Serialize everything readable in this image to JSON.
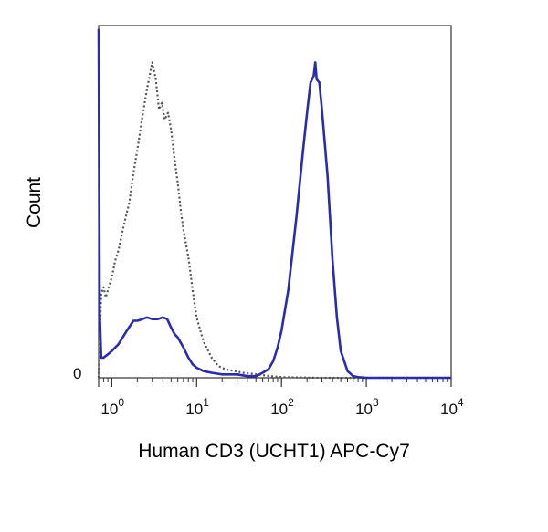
{
  "chart_data": {
    "type": "line",
    "xlabel": "Human CD3 (UCHT1) APC-Cy7",
    "ylabel": "Count",
    "x_scale": "log",
    "xlim": [
      0.7,
      10000
    ],
    "ylim": [
      0,
      105
    ],
    "x_ticks": [
      {
        "base": "10",
        "exp": "0",
        "value": 1
      },
      {
        "base": "10",
        "exp": "1",
        "value": 10
      },
      {
        "base": "10",
        "exp": "2",
        "value": 100
      },
      {
        "base": "10",
        "exp": "3",
        "value": 1000
      },
      {
        "base": "10",
        "exp": "4",
        "value": 10000
      }
    ],
    "y_tick_label": "0",
    "series": [
      {
        "style": "dotted",
        "color": "#555555",
        "x": [
          0.7,
          0.72,
          0.75,
          0.8,
          0.85,
          0.9,
          1.0,
          1.1,
          1.2,
          1.4,
          1.6,
          1.8,
          2.0,
          2.3,
          2.6,
          3.0,
          3.3,
          3.6,
          3.9,
          4.2,
          4.6,
          5.0,
          5.5,
          6.0,
          6.5,
          7.0,
          8.0,
          9.0,
          10,
          12,
          15,
          18,
          22,
          28,
          35,
          45,
          60,
          80,
          100,
          150,
          300,
          1000,
          10000
        ],
        "y": [
          0,
          12,
          25,
          27,
          24,
          26,
          30,
          35,
          38,
          46,
          52,
          61,
          68,
          78,
          86,
          94,
          89,
          80,
          82,
          77,
          79,
          74,
          65,
          58,
          50,
          44,
          36,
          26,
          18,
          11,
          6,
          3.5,
          2.5,
          2,
          1.5,
          1.2,
          0.8,
          0.4,
          0.2,
          0.1,
          0,
          0,
          0
        ]
      },
      {
        "style": "solid",
        "color": "#2b2bb0",
        "x": [
          0.7,
          0.71,
          0.72,
          0.75,
          0.8,
          0.9,
          1.0,
          1.2,
          1.5,
          1.8,
          2.0,
          2.3,
          2.6,
          3.0,
          3.5,
          4.0,
          4.5,
          5.0,
          5.5,
          6.0,
          7.0,
          8.0,
          9.0,
          10,
          12,
          15,
          20,
          25,
          30,
          40,
          50,
          60,
          70,
          80,
          90,
          100,
          120,
          150,
          180,
          200,
          220,
          240,
          250,
          260,
          280,
          300,
          350,
          400,
          450,
          500,
          600,
          700,
          800,
          1000,
          3000,
          10000
        ],
        "y": [
          104,
          60,
          20,
          6,
          6,
          7,
          8,
          10,
          14,
          17,
          17,
          17.5,
          18,
          17.5,
          17.5,
          18,
          17.5,
          15,
          13,
          12,
          9,
          6,
          4,
          3,
          2,
          1.5,
          1,
          1,
          1,
          0.5,
          0.5,
          1.5,
          2.5,
          5,
          9,
          14,
          26,
          48,
          68,
          79,
          88,
          90,
          94,
          89,
          88,
          80,
          60,
          35,
          18,
          8,
          2,
          0.5,
          0.2,
          0,
          0,
          0
        ]
      }
    ]
  }
}
